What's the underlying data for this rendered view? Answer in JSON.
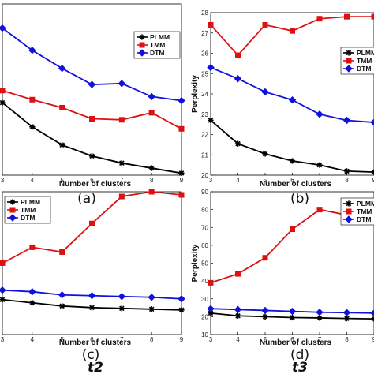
{
  "chart_data": [
    {
      "type": "line",
      "panel_label": "(a)",
      "x": [
        3,
        4,
        5,
        6,
        7,
        8,
        9
      ],
      "xlim": [
        3,
        9
      ],
      "ylim": [
        0,
        8.5
      ],
      "xlabel": "Number of clusters",
      "ylabel": "",
      "xticks": [
        3,
        4,
        5,
        6,
        7,
        8,
        9
      ],
      "yticks": [],
      "legend": "top-right",
      "series": [
        {
          "name": "PLMM",
          "color": "#000000",
          "marker": "star",
          "values": [
            3.6,
            2.4,
            1.5,
            0.95,
            0.6,
            0.35,
            0.1
          ]
        },
        {
          "name": "TMM",
          "color": "#dd1111",
          "marker": "square",
          "values": [
            4.2,
            3.75,
            3.35,
            2.8,
            2.75,
            3.1,
            2.3
          ]
        },
        {
          "name": "DTM",
          "color": "#1111dd",
          "marker": "diamond",
          "values": [
            7.3,
            6.2,
            5.3,
            4.5,
            4.55,
            3.9,
            3.7
          ]
        }
      ]
    },
    {
      "type": "line",
      "panel_label": "(b)",
      "x": [
        3,
        4,
        5,
        6,
        7,
        8,
        9
      ],
      "xlim": [
        3,
        9
      ],
      "ylim": [
        20,
        28
      ],
      "xlabel": "Number of clusters",
      "ylabel": "Perplexity",
      "xticks": [
        3,
        4,
        5,
        6,
        7,
        8,
        9
      ],
      "yticks": [
        20,
        21,
        22,
        23,
        24,
        25,
        26,
        27,
        28
      ],
      "legend": "right",
      "series": [
        {
          "name": "PLMM",
          "color": "#000000",
          "marker": "star",
          "values": [
            22.7,
            21.55,
            21.05,
            20.7,
            20.5,
            20.2,
            20.15
          ]
        },
        {
          "name": "TMM",
          "color": "#dd1111",
          "marker": "square",
          "values": [
            27.4,
            25.9,
            27.4,
            27.1,
            27.7,
            27.8,
            27.8
          ]
        },
        {
          "name": "DTM",
          "color": "#1111dd",
          "marker": "diamond",
          "values": [
            25.3,
            24.75,
            24.1,
            23.7,
            23.0,
            22.7,
            22.6
          ]
        }
      ]
    },
    {
      "type": "line",
      "panel_label": "(c)",
      "x": [
        3,
        4,
        5,
        6,
        7,
        8,
        9
      ],
      "xlim": [
        3,
        9
      ],
      "ylim": [
        0,
        90
      ],
      "xlabel": "Number of clusters",
      "ylabel": "",
      "xticks": [
        3,
        4,
        5,
        6,
        7,
        8,
        9
      ],
      "yticks": [],
      "legend": "top-left",
      "series": [
        {
          "name": "PLMM",
          "color": "#000000",
          "marker": "star",
          "values": [
            22,
            20,
            18,
            17,
            16.5,
            16,
            15.5
          ]
        },
        {
          "name": "TMM",
          "color": "#dd1111",
          "marker": "square",
          "values": [
            45,
            55,
            52,
            70,
            87,
            90,
            88
          ]
        },
        {
          "name": "DTM",
          "color": "#1111dd",
          "marker": "diamond",
          "values": [
            28,
            27,
            25,
            24.5,
            24,
            23.5,
            22.5
          ]
        }
      ]
    },
    {
      "type": "line",
      "panel_label": "(d)",
      "x": [
        3,
        4,
        5,
        6,
        7,
        8,
        9
      ],
      "xlim": [
        3,
        9
      ],
      "ylim": [
        10,
        90
      ],
      "xlabel": "Number of clusters",
      "ylabel": "Perplexity",
      "xticks": [
        3,
        4,
        5,
        6,
        7,
        8,
        9
      ],
      "yticks": [
        10,
        20,
        30,
        40,
        50,
        60,
        70,
        80,
        90
      ],
      "legend": "top-right",
      "series": [
        {
          "name": "PLMM",
          "color": "#000000",
          "marker": "star",
          "values": [
            22,
            20.5,
            20,
            19.5,
            19.3,
            19,
            18.8
          ]
        },
        {
          "name": "TMM",
          "color": "#dd1111",
          "marker": "square",
          "values": [
            39,
            44,
            53,
            69,
            80,
            77,
            84
          ]
        },
        {
          "name": "DTM",
          "color": "#1111dd",
          "marker": "diamond",
          "values": [
            24.5,
            24,
            23.5,
            23,
            22.5,
            22.3,
            22
          ]
        }
      ]
    }
  ],
  "captions": {
    "t_left": "t2",
    "t_right": "t3"
  }
}
